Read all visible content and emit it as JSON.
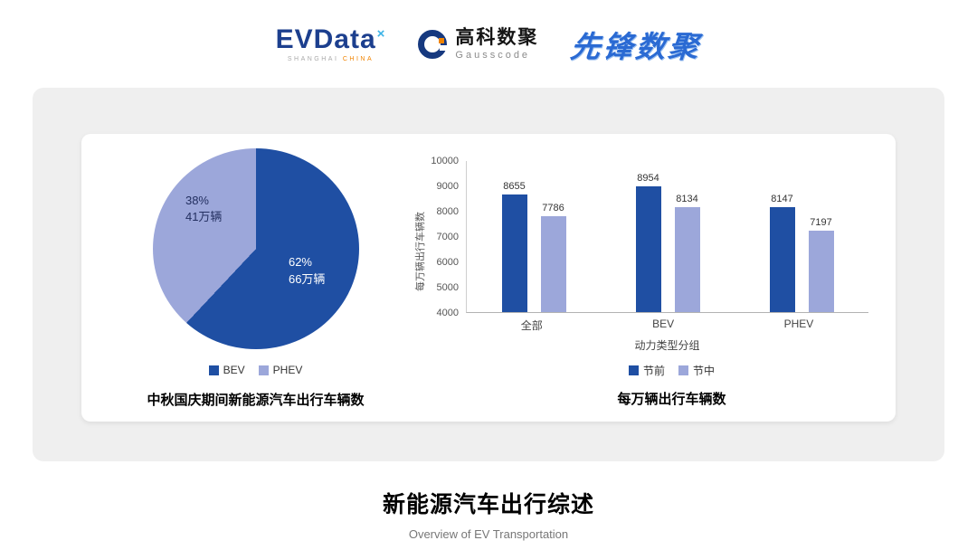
{
  "header": {
    "evdata": {
      "text": "EVData",
      "x_mark": "×",
      "sub1": "SHANGHAI",
      "sub2": "CHINA"
    },
    "gausscode": {
      "cn": "高科数聚",
      "en": "Gausscode"
    },
    "pioneer": {
      "text": "先锋数聚"
    }
  },
  "chart_data": [
    {
      "type": "pie",
      "title": "中秋国庆期间新能源汽车出行车辆数",
      "slices": [
        {
          "name": "BEV",
          "percent": 62,
          "percent_label": "62%",
          "value_label": "66万辆",
          "color": "#1F4FA3"
        },
        {
          "name": "PHEV",
          "percent": 38,
          "percent_label": "38%",
          "value_label": "41万辆",
          "color": "#9CA7DA"
        }
      ],
      "legend": [
        "BEV",
        "PHEV"
      ],
      "start_angle_deg": 0,
      "legend_position": "bottom"
    },
    {
      "type": "bar",
      "title": "每万辆出行车辆数",
      "categories": [
        "全部",
        "BEV",
        "PHEV"
      ],
      "series": [
        {
          "name": "节前",
          "values": [
            8655,
            8954,
            8147
          ],
          "color": "#1F4FA3"
        },
        {
          "name": "节中",
          "values": [
            7786,
            8134,
            7197
          ],
          "color": "#9CA7DA"
        }
      ],
      "xlabel": "动力类型分组",
      "ylabel": "每万辆出行车辆数",
      "ylim": [
        4000,
        10000
      ],
      "ytick_step": 1000,
      "grid": false,
      "legend_position": "bottom"
    }
  ],
  "footer": {
    "title": "新能源汽车出行综述",
    "subtitle": "Overview of EV Transportation"
  }
}
